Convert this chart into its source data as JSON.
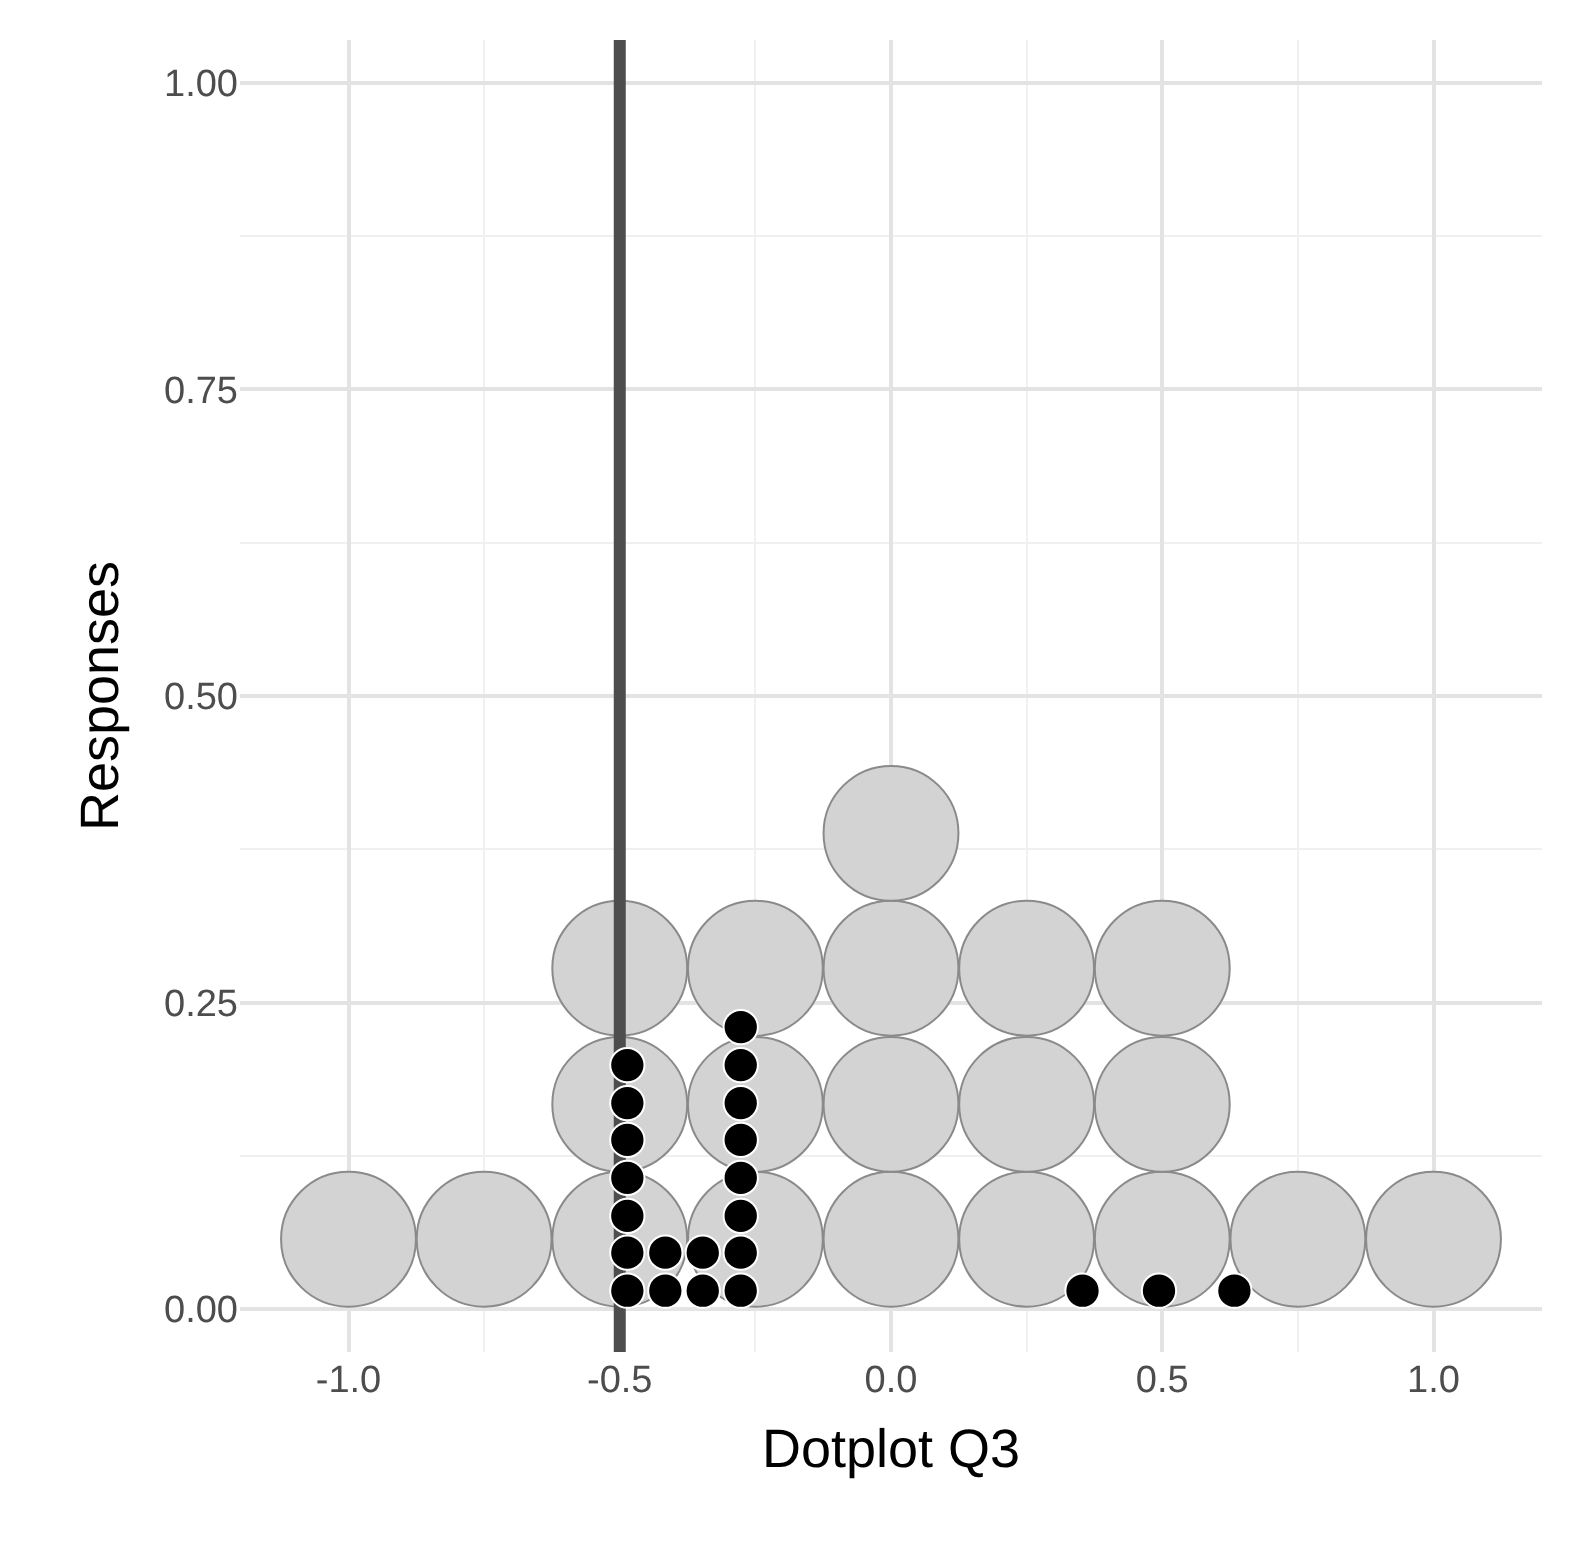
{
  "chart_data": {
    "type": "scatter",
    "xlabel": "Dotplot Q3",
    "ylabel": "Responses",
    "xlim": [
      -1.2,
      1.2
    ],
    "xticks": [
      {
        "value": -1,
        "label": "-1.0"
      },
      {
        "value": -0.5,
        "label": "-0.5"
      },
      {
        "value": 0,
        "label": "0.0"
      },
      {
        "value": 0.5,
        "label": "0.5"
      },
      {
        "value": 1,
        "label": "1.0"
      }
    ],
    "ylim": [
      -0.035,
      1.035
    ],
    "yticks": [
      {
        "value": 0,
        "label": "0.00"
      },
      {
        "value": 0.25,
        "label": "0.25"
      },
      {
        "value": 0.5,
        "label": "0.50"
      },
      {
        "value": 0.75,
        "label": "0.75"
      },
      {
        "value": 1,
        "label": "1.00"
      }
    ],
    "grid": true,
    "marker": "circle",
    "series": [
      {
        "color": "#d3d3d3",
        "x": [
          -1,
          -0.75,
          -0.5,
          -0.5,
          -0.5,
          -0.25,
          -0.25,
          -0.25,
          0,
          0,
          0,
          0,
          0.25,
          0.25,
          0.25,
          0.5,
          0.5,
          0.5,
          0.75,
          1
        ],
        "values": [
          0.057,
          0.057,
          0.057,
          0.167,
          0.278,
          0.057,
          0.167,
          0.278,
          0.057,
          0.167,
          0.278,
          0.388,
          0.057,
          0.167,
          0.278,
          0.057,
          0.167,
          0.278,
          0.057,
          0.057
        ]
      },
      {
        "color": "#000000",
        "x": [
          -0.486,
          -0.486,
          -0.486,
          -0.486,
          -0.486,
          -0.486,
          -0.486,
          -0.416,
          -0.416,
          -0.347,
          -0.347,
          -0.277,
          -0.277,
          -0.277,
          -0.277,
          -0.277,
          -0.277,
          -0.277,
          -0.277,
          0.353,
          0.494,
          0.633
        ],
        "values": [
          0.015,
          0.046,
          0.076,
          0.107,
          0.138,
          0.168,
          0.199,
          0.015,
          0.046,
          0.015,
          0.046,
          0.015,
          0.046,
          0.076,
          0.107,
          0.138,
          0.168,
          0.199,
          0.23,
          0.015,
          0.015,
          0.015
        ]
      }
    ],
    "ref_lines": [
      {
        "axis": "x",
        "value": -0.5,
        "color": "#4d4d4d",
        "line_style": "solid"
      }
    ]
  }
}
